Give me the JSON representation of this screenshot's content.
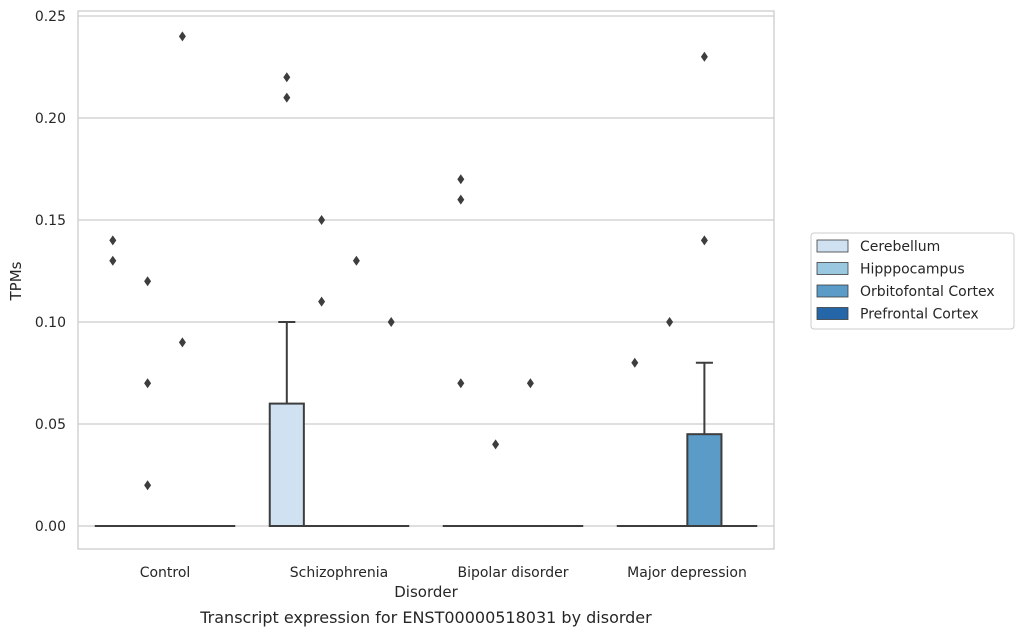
{
  "chart_data": {
    "type": "box",
    "caption": "Transcript expression for ENST00000518031 by disorder",
    "xlabel": "Disorder",
    "ylabel": "TPMs",
    "ylim": [
      -0.012,
      0.253
    ],
    "yticks": [
      "0.00",
      "0.05",
      "0.10",
      "0.15",
      "0.20",
      "0.25"
    ],
    "ytick_values": [
      0,
      0.05,
      0.1,
      0.15,
      0.2,
      0.25
    ],
    "grid": true,
    "legend_position": "right",
    "categories": [
      "Control",
      "Schizophrenia",
      "Bipolar disorder",
      "Major depression"
    ],
    "series": [
      {
        "name": "Cerebellum",
        "color": "#d0e1f2",
        "boxes": [
          {
            "q1": 0,
            "median": 0,
            "q3": 0,
            "whislo": 0,
            "whishi": 0,
            "fliers": [
              0.13,
              0.14
            ]
          },
          {
            "q1": 0,
            "median": 0,
            "q3": 0.06,
            "whislo": 0,
            "whishi": 0.1,
            "fliers": [
              0.21,
              0.22
            ]
          },
          {
            "q1": 0,
            "median": 0,
            "q3": 0,
            "whislo": 0,
            "whishi": 0,
            "fliers": [
              0.07,
              0.16,
              0.17
            ]
          },
          {
            "q1": 0,
            "median": 0,
            "q3": 0,
            "whislo": 0,
            "whishi": 0,
            "fliers": [
              0.08
            ]
          }
        ]
      },
      {
        "name": "Hipppocampus",
        "color": "#9ac8e0",
        "boxes": [
          {
            "q1": 0,
            "median": 0,
            "q3": 0,
            "whislo": 0,
            "whishi": 0,
            "fliers": [
              0.02,
              0.07,
              0.12
            ]
          },
          {
            "q1": 0,
            "median": 0,
            "q3": 0,
            "whislo": 0,
            "whishi": 0,
            "fliers": [
              0.11,
              0.15
            ]
          },
          {
            "q1": 0,
            "median": 0,
            "q3": 0,
            "whislo": 0,
            "whishi": 0,
            "fliers": [
              0.04
            ]
          },
          {
            "q1": 0,
            "median": 0,
            "q3": 0,
            "whislo": 0,
            "whishi": 0,
            "fliers": [
              0.1
            ]
          }
        ]
      },
      {
        "name": "Orbitofontal Cortex",
        "color": "#5a9bc8",
        "boxes": [
          {
            "q1": 0,
            "median": 0,
            "q3": 0,
            "whislo": 0,
            "whishi": 0,
            "fliers": [
              0.09,
              0.24
            ]
          },
          {
            "q1": 0,
            "median": 0,
            "q3": 0,
            "whislo": 0,
            "whishi": 0,
            "fliers": [
              0.13
            ]
          },
          {
            "q1": 0,
            "median": 0,
            "q3": 0,
            "whislo": 0,
            "whishi": 0,
            "fliers": [
              0.07
            ]
          },
          {
            "q1": 0,
            "median": 0,
            "q3": 0.045,
            "whislo": 0,
            "whishi": 0.08,
            "fliers": [
              0.14,
              0.23
            ]
          }
        ]
      },
      {
        "name": "Prefrontal Cortex",
        "color": "#2566a8",
        "boxes": [
          {
            "q1": 0,
            "median": 0,
            "q3": 0,
            "whislo": 0,
            "whishi": 0,
            "fliers": []
          },
          {
            "q1": 0,
            "median": 0,
            "q3": 0,
            "whislo": 0,
            "whishi": 0,
            "fliers": [
              0.1
            ]
          },
          {
            "q1": 0,
            "median": 0,
            "q3": 0,
            "whislo": 0,
            "whishi": 0,
            "fliers": []
          },
          {
            "q1": 0,
            "median": 0,
            "q3": 0,
            "whislo": 0,
            "whishi": 0,
            "fliers": []
          }
        ]
      }
    ]
  }
}
